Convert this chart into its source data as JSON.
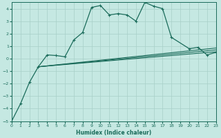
{
  "bg_color": "#c5e8e2",
  "grid_color": "#a8cfc8",
  "line_color": "#1a6b5a",
  "xlabel": "Humidex (Indice chaleur)",
  "xlim": [
    0,
    23
  ],
  "ylim": [
    -5,
    4.5
  ],
  "xticks": [
    0,
    1,
    2,
    3,
    4,
    5,
    6,
    7,
    8,
    9,
    10,
    11,
    12,
    13,
    14,
    15,
    16,
    17,
    18,
    19,
    20,
    21,
    22,
    23
  ],
  "yticks": [
    -5,
    -4,
    -3,
    -2,
    -1,
    0,
    1,
    2,
    3,
    4
  ],
  "curve1_x": [
    0,
    1,
    2,
    3,
    4,
    5,
    6,
    7,
    8,
    9,
    10,
    11,
    12,
    13,
    14,
    15,
    16,
    17,
    18,
    20,
    21,
    22,
    23
  ],
  "curve1_y": [
    -5,
    -3.6,
    -1.9,
    -0.65,
    0.3,
    0.25,
    0.15,
    1.5,
    2.1,
    4.1,
    4.25,
    3.5,
    3.6,
    3.5,
    3.0,
    4.5,
    4.2,
    4.0,
    1.7,
    0.8,
    0.9,
    0.3,
    0.5
  ],
  "line1_x": [
    3,
    23
  ],
  "line1_y": [
    -0.65,
    0.55
  ],
  "line2_x": [
    3,
    23
  ],
  "line2_y": [
    -0.65,
    0.7
  ],
  "line3_x": [
    3,
    23
  ],
  "line3_y": [
    -0.65,
    0.85
  ]
}
